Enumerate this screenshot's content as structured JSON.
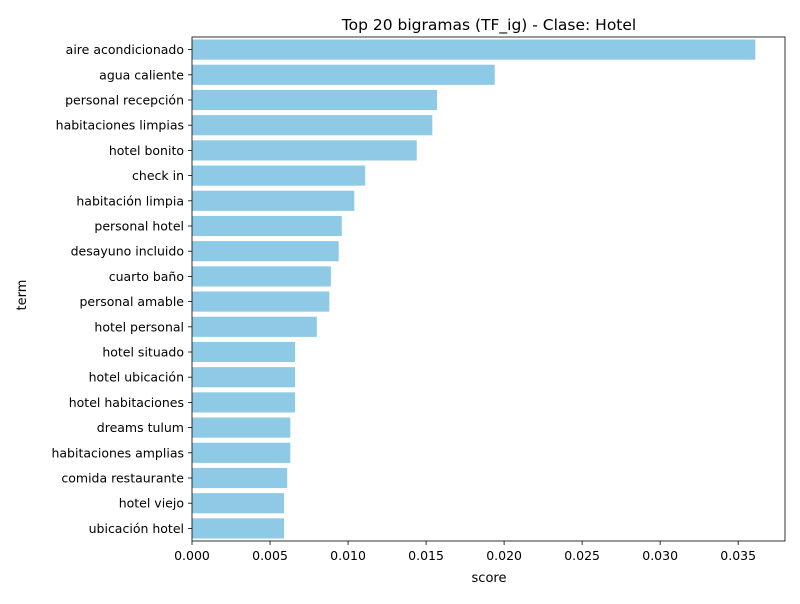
{
  "chart_data": {
    "type": "bar",
    "orientation": "horizontal",
    "title": "Top 20 bigramas (TF_ig) - Clase: Hotel",
    "xlabel": "score",
    "ylabel": "term",
    "categories": [
      "aire acondicionado",
      "agua caliente",
      "personal recepción",
      "habitaciones limpias",
      "hotel bonito",
      "check in",
      "habitación limpia",
      "personal hotel",
      "desayuno incluido",
      "cuarto baño",
      "personal amable",
      "hotel personal",
      "hotel situado",
      "hotel ubicación",
      "hotel habitaciones",
      "dreams tulum",
      "habitaciones amplias",
      "comida restaurante",
      "hotel viejo",
      "ubicación hotel"
    ],
    "values": [
      0.0361,
      0.0194,
      0.0157,
      0.0154,
      0.0144,
      0.0111,
      0.0104,
      0.0096,
      0.0094,
      0.0089,
      0.0088,
      0.008,
      0.0066,
      0.0066,
      0.0066,
      0.0063,
      0.0063,
      0.0061,
      0.0059,
      0.0059
    ],
    "xlim": [
      0,
      0.038
    ],
    "xticks": [
      "0.000",
      "0.005",
      "0.010",
      "0.015",
      "0.020",
      "0.025",
      "0.030",
      "0.035"
    ],
    "grid": false,
    "legend": false,
    "bar_color": "#8ecae6"
  }
}
